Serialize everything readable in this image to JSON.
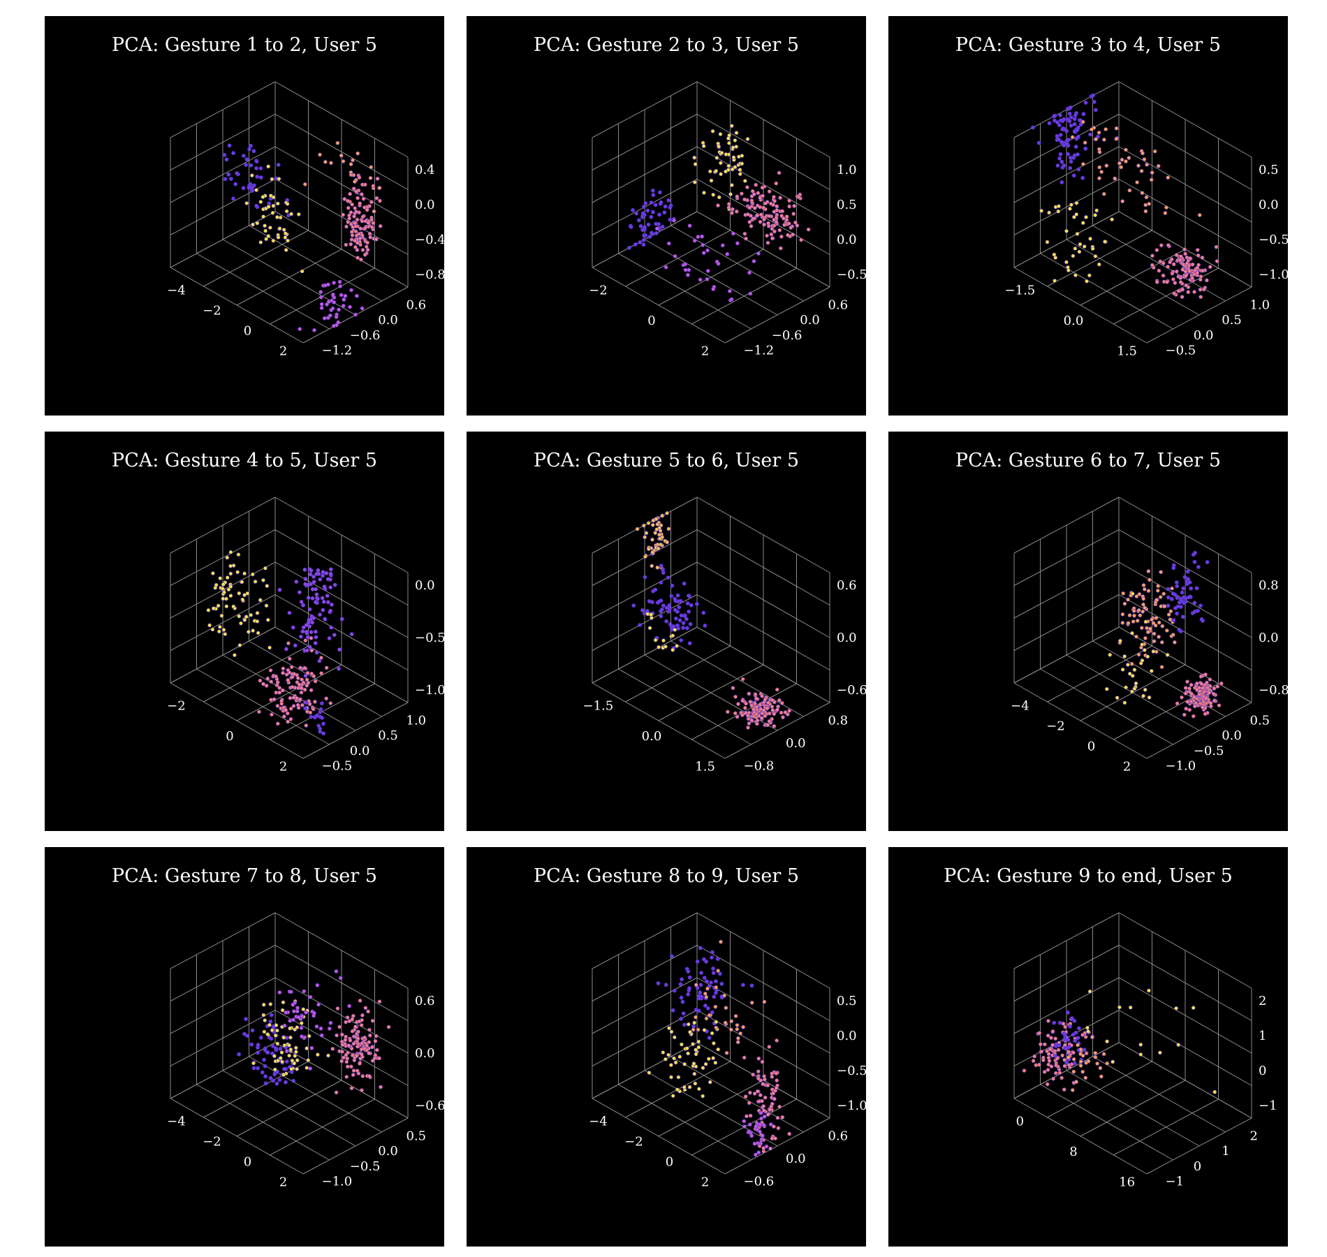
{
  "chart_data": [
    {
      "type": "scatter3d",
      "title": "PCA: Gesture 1 to 2, User 5",
      "colormap": "plasma",
      "x_ticks": [
        "−4",
        "−2",
        "0",
        "2"
      ],
      "y_ticks": [
        "−1.2",
        "−0.6",
        "0.0",
        "0.6"
      ],
      "z_ticks": [
        "−0.8",
        "−0.4",
        "0.0",
        "0.4"
      ],
      "clusters": [
        {
          "color": "#6a3be0",
          "x": -3.2,
          "y": -0.2,
          "z": -0.1,
          "sx": 0.9,
          "sy": 0.2,
          "sz": 0.15,
          "n": 40
        },
        {
          "color": "#f4e34a",
          "x": -2.0,
          "y": -0.3,
          "z": -0.3,
          "sx": 0.5,
          "sy": 0.2,
          "sz": 0.2,
          "n": 45
        },
        {
          "color": "#f5a05a",
          "x": 0.5,
          "y": 0.3,
          "z": 0.3,
          "sx": 1.0,
          "sy": 0.2,
          "sz": 0.1,
          "n": 20
        },
        {
          "color": "#f08080",
          "x": 2.3,
          "y": 0.0,
          "z": 0.0,
          "sx": 0.25,
          "sy": 0.15,
          "sz": 0.2,
          "n": 110
        },
        {
          "color": "#c05ad8",
          "x": 2.6,
          "y": -0.7,
          "z": -0.7,
          "sx": 0.25,
          "sy": 0.2,
          "sz": 0.15,
          "n": 40
        }
      ]
    },
    {
      "type": "scatter3d",
      "title": "PCA: Gesture 2 to 3, User 5",
      "colormap": "plasma",
      "x_ticks": [
        "−2",
        "0",
        "2"
      ],
      "y_ticks": [
        "−1.2",
        "−0.6",
        "0.0",
        "0.6"
      ],
      "z_ticks": [
        "−0.5",
        "0.0",
        "0.5",
        "1.0"
      ],
      "clusters": [
        {
          "color": "#6a3be0",
          "x": -2.6,
          "y": -0.2,
          "z": -0.4,
          "sx": 0.3,
          "sy": 0.2,
          "sz": 0.25,
          "n": 50
        },
        {
          "color": "#f4e34a",
          "x": -0.5,
          "y": 0.3,
          "z": 0.7,
          "sx": 0.3,
          "sy": 0.2,
          "sz": 0.25,
          "n": 55
        },
        {
          "color": "#f08080",
          "x": 1.2,
          "y": 0.2,
          "z": 0.3,
          "sx": 0.6,
          "sy": 0.2,
          "sz": 0.15,
          "n": 120
        },
        {
          "color": "#c05ad8",
          "x": 0.5,
          "y": -0.6,
          "z": -0.3,
          "sx": 0.8,
          "sy": 0.3,
          "sz": 0.2,
          "n": 35
        }
      ]
    },
    {
      "type": "scatter3d",
      "title": "PCA: Gesture 3 to 4, User 5",
      "colormap": "plasma",
      "x_ticks": [
        "−1.5",
        "0.0",
        "1.5"
      ],
      "y_ticks": [
        "−0.5",
        "0.0",
        "0.5",
        "1.0"
      ],
      "z_ticks": [
        "−1.0",
        "−0.5",
        "0.0",
        "0.5"
      ],
      "clusters": [
        {
          "color": "#6a3be0",
          "x": -2.2,
          "y": 0.3,
          "z": 0.4,
          "sx": 0.3,
          "sy": 0.2,
          "sz": 0.35,
          "n": 80
        },
        {
          "color": "#f4e34a",
          "x": -0.8,
          "y": -0.2,
          "z": -0.7,
          "sx": 0.4,
          "sy": 0.2,
          "sz": 0.3,
          "n": 40
        },
        {
          "color": "#f5a05a",
          "x": -0.3,
          "y": 0.4,
          "z": 0.2,
          "sx": 0.8,
          "sy": 0.2,
          "sz": 0.2,
          "n": 50
        },
        {
          "color": "#f08080",
          "x": 1.6,
          "y": 0.2,
          "z": -0.6,
          "sx": 0.3,
          "sy": 0.15,
          "sz": 0.15,
          "n": 120
        }
      ]
    },
    {
      "type": "scatter3d",
      "title": "PCA: Gesture 4 to 5, User 5",
      "colormap": "plasma",
      "x_ticks": [
        "−2",
        "0",
        "2"
      ],
      "y_ticks": [
        "−0.5",
        "0.0",
        "0.5",
        "1.0"
      ],
      "z_ticks": [
        "−1.0",
        "−0.5",
        "0.0"
      ],
      "clusters": [
        {
          "color": "#f4e34a",
          "x": -2.0,
          "y": 0.2,
          "z": -0.5,
          "sx": 0.6,
          "sy": 0.2,
          "sz": 0.2,
          "n": 70
        },
        {
          "color": "#8a48e0",
          "x": 0.9,
          "y": 0.3,
          "z": -0.1,
          "sx": 0.3,
          "sy": 0.2,
          "sz": 0.3,
          "n": 90
        },
        {
          "color": "#f08080",
          "x": 1.1,
          "y": -0.2,
          "z": -0.8,
          "sx": 0.4,
          "sy": 0.2,
          "sz": 0.15,
          "n": 110
        },
        {
          "color": "#6a3be0",
          "x": 2.2,
          "y": -0.3,
          "z": -0.9,
          "sx": 0.2,
          "sy": 0.1,
          "sz": 0.1,
          "n": 15
        }
      ]
    },
    {
      "type": "scatter3d",
      "title": "PCA: Gesture 5 to 6, User 5",
      "colormap": "plasma",
      "x_ticks": [
        "−1.5",
        "0.0",
        "1.5"
      ],
      "y_ticks": [
        "−0.8",
        "0.0",
        "0.8"
      ],
      "z_ticks": [
        "−0.6",
        "0.0",
        "0.6"
      ],
      "clusters": [
        {
          "color": "#f5c050",
          "x": -2.2,
          "y": 0.2,
          "z": 0.6,
          "sx": 0.3,
          "sy": 0.15,
          "sz": 0.2,
          "n": 55
        },
        {
          "color": "#6a3be0",
          "x": -1.3,
          "y": 0.1,
          "z": -0.1,
          "sx": 0.35,
          "sy": 0.15,
          "sz": 0.15,
          "n": 70
        },
        {
          "color": "#f4e34a",
          "x": -1.4,
          "y": 0.0,
          "z": -0.4,
          "sx": 0.3,
          "sy": 0.1,
          "sz": 0.1,
          "n": 15
        },
        {
          "color": "#f08080",
          "x": 1.2,
          "y": 0.1,
          "z": -0.7,
          "sx": 0.25,
          "sy": 0.15,
          "sz": 0.08,
          "n": 130
        }
      ]
    },
    {
      "type": "scatter3d",
      "title": "PCA: Gesture 6 to 7, User 5",
      "colormap": "plasma",
      "x_ticks": [
        "−4",
        "−2",
        "0",
        "2"
      ],
      "y_ticks": [
        "−1.0",
        "−0.5",
        "0.0",
        "0.5"
      ],
      "z_ticks": [
        "−0.8",
        "0.0",
        "0.8"
      ],
      "clusters": [
        {
          "color": "#f5a05a",
          "x": -1.2,
          "y": 0.1,
          "z": 0.0,
          "sx": 0.6,
          "sy": 0.2,
          "sz": 0.3,
          "n": 80
        },
        {
          "color": "#f4e34a",
          "x": -0.8,
          "y": -0.3,
          "z": -0.6,
          "sx": 0.6,
          "sy": 0.2,
          "sz": 0.3,
          "n": 30
        },
        {
          "color": "#6a3be0",
          "x": 0.2,
          "y": 0.3,
          "z": 0.4,
          "sx": 0.25,
          "sy": 0.15,
          "sz": 0.25,
          "n": 55
        },
        {
          "color": "#f08080",
          "x": 2.0,
          "y": 0.0,
          "z": -0.7,
          "sx": 0.25,
          "sy": 0.12,
          "sz": 0.12,
          "n": 130
        }
      ]
    },
    {
      "type": "scatter3d",
      "title": "PCA: Gesture 7 to 8, User 5",
      "colormap": "plasma",
      "x_ticks": [
        "−4",
        "−2",
        "0",
        "2"
      ],
      "y_ticks": [
        "−1.0",
        "−0.5",
        "0.0",
        "0.5"
      ],
      "z_ticks": [
        "−0.6",
        "0.0",
        "0.6"
      ],
      "clusters": [
        {
          "color": "#6a3be0",
          "x": -2.6,
          "y": 0.0,
          "z": -0.4,
          "sx": 0.6,
          "sy": 0.2,
          "sz": 0.2,
          "n": 60
        },
        {
          "color": "#f4e34a",
          "x": -1.8,
          "y": 0.0,
          "z": -0.2,
          "sx": 0.6,
          "sy": 0.2,
          "sz": 0.2,
          "n": 60
        },
        {
          "color": "#c05ad8",
          "x": -1.5,
          "y": 0.2,
          "z": 0.1,
          "sx": 0.6,
          "sy": 0.2,
          "sz": 0.2,
          "n": 40
        },
        {
          "color": "#f08080",
          "x": 1.8,
          "y": 0.1,
          "z": 0.2,
          "sx": 0.3,
          "sy": 0.15,
          "sz": 0.2,
          "n": 120
        }
      ]
    },
    {
      "type": "scatter3d",
      "title": "PCA: Gesture 8 to 9, User 5",
      "colormap": "plasma",
      "x_ticks": [
        "−4",
        "−2",
        "0",
        "2"
      ],
      "y_ticks": [
        "−0.6",
        "0.0",
        "0.6"
      ],
      "z_ticks": [
        "−1.0",
        "−0.5",
        "0.0",
        "0.5"
      ],
      "clusters": [
        {
          "color": "#6a3be0",
          "x": -2.4,
          "y": 0.2,
          "z": 0.2,
          "sx": 0.6,
          "sy": 0.2,
          "sz": 0.25,
          "n": 60
        },
        {
          "color": "#f4e34a",
          "x": -2.2,
          "y": 0.0,
          "z": -0.6,
          "sx": 0.5,
          "sy": 0.2,
          "sz": 0.3,
          "n": 55
        },
        {
          "color": "#f5a05a",
          "x": -1.0,
          "y": 0.2,
          "z": 0.1,
          "sx": 1.0,
          "sy": 0.2,
          "sz": 0.3,
          "n": 30
        },
        {
          "color": "#f08080",
          "x": 2.4,
          "y": -0.1,
          "z": -0.5,
          "sx": 0.2,
          "sy": 0.1,
          "sz": 0.35,
          "n": 80
        },
        {
          "color": "#c05ad8",
          "x": 2.3,
          "y": -0.2,
          "z": -0.9,
          "sx": 0.2,
          "sy": 0.1,
          "sz": 0.15,
          "n": 25
        }
      ]
    },
    {
      "type": "scatter3d",
      "title": "PCA: Gesture 9 to end, User 5",
      "colormap": "plasma",
      "x_ticks": [
        "0",
        "8",
        "16"
      ],
      "y_ticks": [
        "−1",
        "0",
        "1",
        "2"
      ],
      "z_ticks": [
        "−1",
        "0",
        "1",
        "2"
      ],
      "clusters": [
        {
          "color": "#f08080",
          "x": -1.0,
          "y": 0.0,
          "z": -0.5,
          "sx": 1.2,
          "sy": 0.4,
          "sz": 0.4,
          "n": 90
        },
        {
          "color": "#6a3be0",
          "x": -0.5,
          "y": 0.2,
          "z": -0.2,
          "sx": 1.0,
          "sy": 0.3,
          "sz": 0.3,
          "n": 30
        },
        {
          "color": "#f5a05a",
          "x": 3.5,
          "y": 0.0,
          "z": -0.3,
          "sx": 1.0,
          "sy": 0.3,
          "sz": 0.3,
          "n": 25
        },
        {
          "color": "#f4e34a",
          "x": 10.0,
          "y": 0.8,
          "z": 0.6,
          "sx": 4.5,
          "sy": 0.3,
          "sz": 0.5,
          "n": 15
        }
      ]
    }
  ]
}
